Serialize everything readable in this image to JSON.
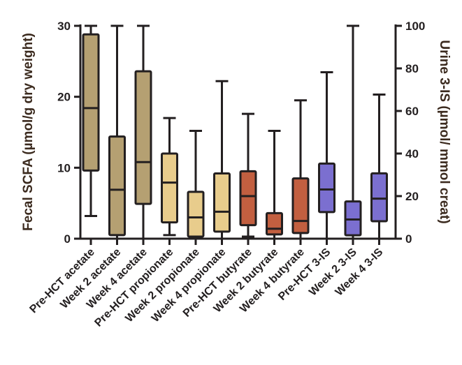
{
  "chart_data": {
    "type": "box",
    "title": "",
    "ylabel": "Fecal  SCFA (µmol/g dry weight)",
    "y2label": "Urine 3-IS (µmol/ mmol creat)",
    "ylim": [
      0,
      30
    ],
    "y2lim": [
      0,
      100
    ],
    "yticks": [
      "0",
      "10",
      "20",
      "30"
    ],
    "y2ticks": [
      "0",
      "20",
      "40",
      "60",
      "80",
      "100"
    ],
    "grid": false,
    "colors": {
      "acetate": "#b5a072",
      "propionate": "#e8cc8c",
      "butyrate": "#c25f40",
      "three_is": "#7b6fd0"
    },
    "categories": [
      "Pre-HCT acetate",
      "Week 2 acetate",
      "Week 4 acetate",
      "Pre-HCT propionate",
      "Week 2 propionate",
      "Week 4 propionate",
      "Pre-HCT butyrate",
      "Week 2 butyrate",
      "Week 4 butyrate",
      "Pre-HCT 3-IS",
      "Week 2 3-IS",
      "Week 4 3-IS"
    ],
    "series": [
      {
        "name": "Pre-HCT acetate",
        "axis": "left",
        "group": "acetate",
        "min": 3.2,
        "q1": 9.6,
        "median": 18.4,
        "q3": 28.8,
        "max": 30
      },
      {
        "name": "Week 2 acetate",
        "axis": "left",
        "group": "acetate",
        "min": 0,
        "q1": 0.5,
        "median": 6.9,
        "q3": 14.4,
        "max": 30
      },
      {
        "name": "Week 4 acetate",
        "axis": "left",
        "group": "acetate",
        "min": 0,
        "q1": 4.9,
        "median": 10.8,
        "q3": 23.6,
        "max": 30
      },
      {
        "name": "Pre-HCT propionate",
        "axis": "left",
        "group": "propionate",
        "min": 0.5,
        "q1": 2.3,
        "median": 7.9,
        "q3": 12.0,
        "max": 17.0
      },
      {
        "name": "Week 2 propionate",
        "axis": "left",
        "group": "propionate",
        "min": 0,
        "q1": 0.3,
        "median": 3.0,
        "q3": 6.6,
        "max": 15.2
      },
      {
        "name": "Week 4 propionate",
        "axis": "left",
        "group": "propionate",
        "min": 0,
        "q1": 1.0,
        "median": 3.8,
        "q3": 9.2,
        "max": 22.2
      },
      {
        "name": "Pre-HCT butyrate",
        "axis": "left",
        "group": "butyrate",
        "min": 0.3,
        "q1": 1.9,
        "median": 6.0,
        "q3": 9.5,
        "max": 17.6
      },
      {
        "name": "Week 2 butyrate",
        "axis": "left",
        "group": "butyrate",
        "min": 0,
        "q1": 0.6,
        "median": 1.4,
        "q3": 3.6,
        "max": 15.2
      },
      {
        "name": "Week 4 butyrate",
        "axis": "left",
        "group": "butyrate",
        "min": 0,
        "q1": 0.8,
        "median": 2.5,
        "q3": 8.5,
        "max": 19.5
      },
      {
        "name": "Pre-HCT 3-IS",
        "axis": "right",
        "group": "three_is",
        "min": 0,
        "q1": 12.5,
        "median": 23.1,
        "q3": 35.3,
        "max": 78.2
      },
      {
        "name": "Week 2 3-IS",
        "axis": "right",
        "group": "three_is",
        "min": 0,
        "q1": 1.6,
        "median": 9.0,
        "q3": 17.5,
        "max": 100
      },
      {
        "name": "Week 4 3-IS",
        "axis": "right",
        "group": "three_is",
        "min": 0,
        "q1": 8.2,
        "median": 18.8,
        "q3": 30.7,
        "max": 67.7
      }
    ]
  }
}
